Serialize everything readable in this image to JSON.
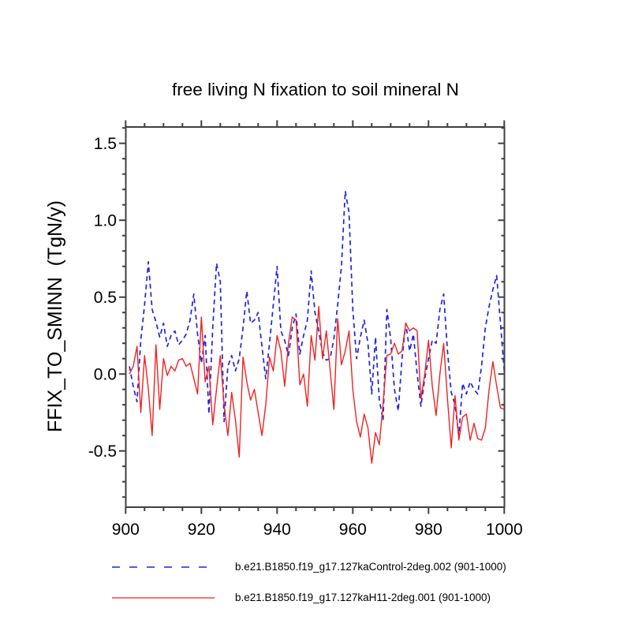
{
  "chart_data": {
    "type": "line",
    "title": "free living N fixation to soil mineral N",
    "xlabel": "",
    "ylabel": "FFIX_TO_SMINN  (TgN/y)",
    "x_start": 901,
    "xlim": [
      900,
      1000
    ],
    "ylim": [
      -0.87,
      1.61
    ],
    "grid": false,
    "legend_position": "bottom-left",
    "x_ticks": {
      "labels": [
        "900",
        "920",
        "940",
        "960",
        "980",
        "1000"
      ],
      "values": [
        900,
        920,
        940,
        960,
        980,
        1000
      ],
      "minor_step": 5
    },
    "y_ticks": {
      "labels": [
        "-0.5",
        "0.0",
        "0.5",
        "1.0",
        "1.5"
      ],
      "values": [
        -0.5,
        0.0,
        0.5,
        1.0,
        1.5
      ],
      "minor_step": 0.1,
      "minor_range": [
        -0.8,
        1.6
      ]
    },
    "axis_color": "#404040",
    "series": [
      {
        "name": "b.e21.B1850.f19_g17.127kaControl-2deg.002 (901-1000)",
        "color": "#2222dd",
        "line_style": "dashed",
        "values": [
          0.05,
          -0.08,
          -0.18,
          0.22,
          0.45,
          0.73,
          0.42,
          0.34,
          0.24,
          0.33,
          0.18,
          0.25,
          0.28,
          0.19,
          0.22,
          0.26,
          0.35,
          0.52,
          0.26,
          0.07,
          0.25,
          -0.26,
          0.3,
          0.72,
          0.6,
          -0.31,
          0.05,
          0.12,
          0.02,
          0.1,
          0.3,
          0.54,
          0.33,
          0.35,
          0.4,
          0.18,
          -0.03,
          0.2,
          0.45,
          0.7,
          0.28,
          0.22,
          0.12,
          0.3,
          0.39,
          0.13,
          0.25,
          0.35,
          0.67,
          0.4,
          0.28,
          0.14,
          0.09,
          0.1,
          0.23,
          0.45,
          0.7,
          1.19,
          1.05,
          0.42,
          0.1,
          0.24,
          0.35,
          0.2,
          -0.13,
          0.24,
          -0.17,
          -0.3,
          0.42,
          0.23,
          -0.1,
          -0.24,
          0.1,
          0.33,
          0.15,
          0.26,
          0.0,
          -0.21,
          -0.03,
          0.1,
          0.22,
          0.2,
          0.42,
          0.52,
          0.15,
          -0.12,
          -0.2,
          -0.4,
          -0.06,
          -0.13,
          -0.05,
          -0.1,
          -0.13,
          0.05,
          0.3,
          0.44,
          0.55,
          0.64,
          0.33,
          0.02
        ]
      },
      {
        "name": "b.e21.B1850.f19_g17.127kaH11-2deg.001 (901-1000)",
        "color": "#f02222",
        "line_style": "solid",
        "values": [
          0.0,
          0.05,
          0.18,
          -0.25,
          0.12,
          -0.1,
          -0.4,
          0.19,
          -0.23,
          0.1,
          -0.01,
          0.05,
          0.02,
          0.09,
          0.1,
          0.05,
          0.07,
          -0.03,
          -0.13,
          0.37,
          -0.05,
          0.05,
          -0.33,
          -0.1,
          0.12,
          -0.2,
          -0.4,
          -0.12,
          -0.3,
          -0.54,
          0.11,
          -0.05,
          -0.17,
          -0.1,
          -0.25,
          -0.4,
          -0.2,
          0.11,
          0.02,
          0.25,
          0.15,
          -0.08,
          0.2,
          0.37,
          0.35,
          -0.07,
          0.0,
          -0.21,
          0.25,
          0.09,
          0.44,
          0.1,
          0.28,
          0.03,
          -0.23,
          0.36,
          0.06,
          0.15,
          0.28,
          -0.1,
          -0.31,
          -0.41,
          -0.26,
          -0.35,
          -0.58,
          -0.38,
          -0.46,
          -0.19,
          0.12,
          0.13,
          0.2,
          0.13,
          0.15,
          0.33,
          0.28,
          0.3,
          0.28,
          -0.16,
          0.0,
          0.22,
          -0.08,
          -0.27,
          0.0,
          0.2,
          -0.16,
          -0.48,
          -0.14,
          -0.43,
          -0.28,
          -0.26,
          -0.43,
          -0.32,
          -0.42,
          -0.43,
          -0.35,
          -0.1,
          0.08,
          -0.08,
          -0.22,
          -0.23
        ]
      }
    ]
  }
}
